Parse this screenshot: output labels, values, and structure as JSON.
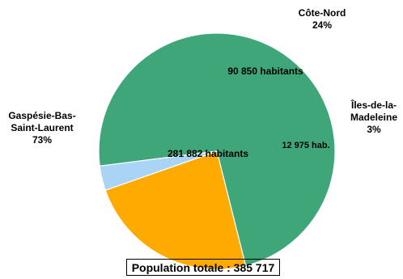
{
  "chart_data": {
    "type": "pie",
    "title": "",
    "slices": [
      {
        "name_lines": [
          "Gaspésie-Bas-",
          "Saint-Laurent"
        ],
        "percent_label": "73%",
        "value": 281882,
        "value_label": "281 882 habitants",
        "color": "#3fa67a"
      },
      {
        "name_lines": [
          "Côte-Nord"
        ],
        "percent_label": "24%",
        "value": 90850,
        "value_label": "90 850 habitants",
        "color": "#ffaa00"
      },
      {
        "name_lines": [
          "Îles-de-la-",
          "Madeleine"
        ],
        "percent_label": "3%",
        "value": 12975,
        "value_label": "12 975 hab.",
        "color": "#aad4f6"
      }
    ],
    "total_label": "Population totale : 385 717"
  }
}
